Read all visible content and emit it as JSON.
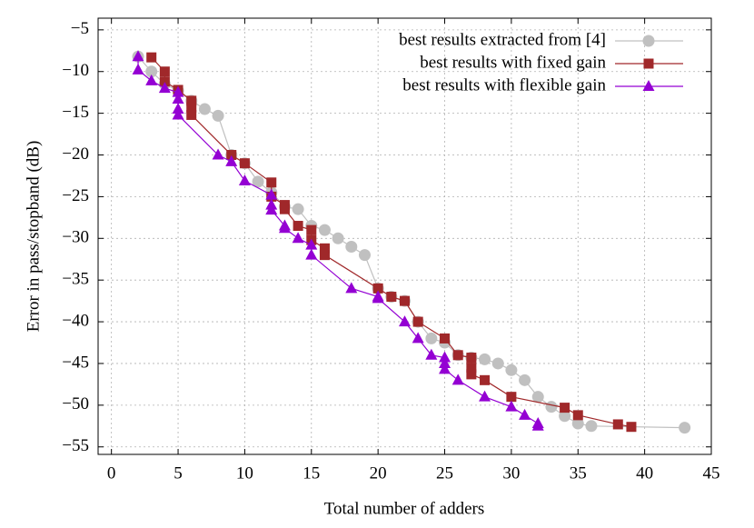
{
  "chart_data": {
    "type": "line",
    "x_label": "Total number of adders",
    "y_label": "Error in pass/stopband (dB)",
    "xlim": [
      -1,
      45
    ],
    "ylim": [
      -55.9,
      -3.6
    ],
    "xticks": [
      0,
      5,
      10,
      15,
      20,
      25,
      30,
      35,
      40,
      45
    ],
    "yticks": [
      {
        "value": -5,
        "label": "−5"
      },
      {
        "value": -10,
        "label": "−10"
      },
      {
        "value": -15,
        "label": "−15"
      },
      {
        "value": -20,
        "label": "−20"
      },
      {
        "value": -25,
        "label": "−25"
      },
      {
        "value": -30,
        "label": "−30"
      },
      {
        "value": -35,
        "label": "−35"
      },
      {
        "value": -40,
        "label": "−40"
      },
      {
        "value": -45,
        "label": "−45"
      },
      {
        "value": -50,
        "label": "−50"
      },
      {
        "value": -55,
        "label": "−55"
      }
    ],
    "grid": true,
    "legend": "top-right",
    "series": [
      {
        "name": "best results extracted from [4]",
        "color": "#c0c0c0",
        "marker": "circle",
        "x": [
          2,
          3,
          4,
          5,
          6,
          7,
          8,
          9,
          10,
          11,
          12,
          13,
          14,
          15,
          16,
          17,
          18,
          19,
          20,
          21,
          22,
          23,
          24,
          25,
          26,
          27,
          28,
          29,
          30,
          31,
          32,
          33,
          34,
          35,
          36,
          43
        ],
        "values": [
          -8.2,
          -10,
          -11.5,
          -12.3,
          -13.5,
          -14.5,
          -15.3,
          -20,
          -21,
          -23.2,
          -24.5,
          -26.2,
          -26.5,
          -28.5,
          -29,
          -30,
          -31,
          -32,
          -36,
          -37,
          -37.5,
          -40,
          -42,
          -42.5,
          -44,
          -44.3,
          -44.5,
          -45,
          -45.8,
          -47,
          -49,
          -50.2,
          -51.3,
          -52.2,
          -52.5,
          -52.7
        ]
      },
      {
        "name": "best results with fixed gain",
        "color": "#a0282a",
        "marker": "square",
        "x": [
          3,
          4,
          4,
          5,
          6,
          6,
          6,
          9,
          10,
          12,
          12,
          13,
          13,
          14,
          15,
          15,
          16,
          16,
          20,
          21,
          22,
          23,
          25,
          26,
          27,
          27,
          27,
          28,
          30,
          34,
          35,
          38,
          39
        ],
        "values": [
          -8.3,
          -10,
          -11.2,
          -12.2,
          -13.5,
          -14.3,
          -15.2,
          -20,
          -21,
          -23.3,
          -25,
          -26,
          -26.5,
          -28.5,
          -29,
          -30.2,
          -31.2,
          -32,
          -36,
          -37,
          -37.5,
          -40,
          -42,
          -44,
          -44.3,
          -45.5,
          -46.3,
          -47,
          -49,
          -50.3,
          -51.2,
          -52.3,
          -52.6
        ]
      },
      {
        "name": "best results with flexible gain",
        "color": "#9400d3",
        "marker": "triangle",
        "x": [
          2,
          2,
          3,
          4,
          5,
          5,
          5,
          5,
          8,
          9,
          10,
          12,
          12,
          12,
          13,
          13,
          14,
          15,
          15,
          18,
          20,
          20,
          22,
          23,
          24,
          25,
          25,
          25,
          26,
          28,
          30,
          31,
          32,
          32
        ],
        "values": [
          -8.2,
          -9.8,
          -11.1,
          -12,
          -12.5,
          -13.3,
          -14.5,
          -15.2,
          -20,
          -20.8,
          -23.1,
          -24.8,
          -26,
          -26.6,
          -28.5,
          -28.8,
          -30,
          -30.8,
          -32,
          -36,
          -37,
          -37.2,
          -40,
          -42,
          -44,
          -44.3,
          -45,
          -45.7,
          -47,
          -49,
          -50.2,
          -51.2,
          -52.2,
          -52.5
        ]
      }
    ]
  }
}
